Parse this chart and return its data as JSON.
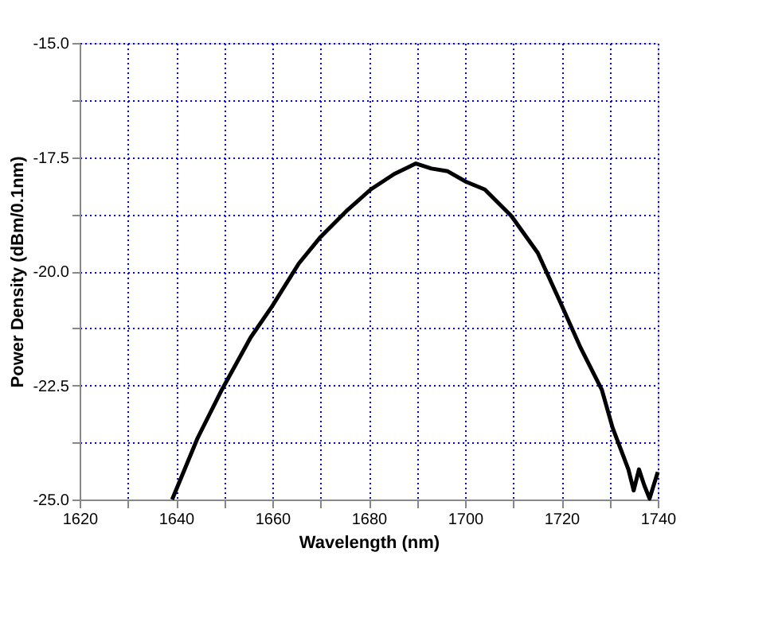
{
  "chart_data": {
    "type": "line",
    "xlabel": "Wavelength (nm)",
    "ylabel": "Power Density (dBm/0.1nm)",
    "x": [
      1639.2,
      1644.5,
      1649.5,
      1655.5,
      1660,
      1665.5,
      1670,
      1675.4,
      1680.4,
      1685.3,
      1689.8,
      1693,
      1696.4,
      1700.2,
      1704.1,
      1709.6,
      1715.1,
      1719.6,
      1724,
      1728.4,
      1730.6,
      1733.9,
      1735,
      1736.1,
      1737.2,
      1738.3,
      1740
    ],
    "series": [
      {
        "color": "#000000",
        "values": [
          -25,
          -23.65,
          -22.6,
          -21.45,
          -20.76,
          -19.83,
          -19.25,
          -18.68,
          -18.21,
          -17.87,
          -17.64,
          -17.75,
          -17.81,
          -18.04,
          -18.21,
          -18.79,
          -19.6,
          -20.64,
          -21.68,
          -22.6,
          -23.42,
          -24.34,
          -24.8,
          -24.34,
          -24.69,
          -24.98,
          -24.4
        ]
      }
    ],
    "xlim": [
      1620,
      1740
    ],
    "ylim": [
      -25,
      -15
    ],
    "xticks": [
      1620,
      {
        "value": 1630,
        "label": null
      },
      1640,
      {
        "value": 1650,
        "label": null
      },
      1660,
      {
        "value": 1670,
        "label": null
      },
      1680,
      {
        "value": 1690,
        "label": null
      },
      1700,
      {
        "value": 1710,
        "label": null
      },
      1720,
      {
        "value": 1730,
        "label": null
      },
      1740
    ],
    "yticks": [
      {
        "value": -25,
        "label": "-25.0"
      },
      {
        "value": -23.75,
        "label": null
      },
      {
        "value": -22.5,
        "label": "-22.5"
      },
      {
        "value": -21.25,
        "label": null
      },
      {
        "value": -20,
        "label": "-20.0"
      },
      {
        "value": -18.75,
        "label": null
      },
      {
        "value": -17.5,
        "label": "-17.5"
      },
      {
        "value": -16.25,
        "label": null
      },
      {
        "value": -15,
        "label": "-15.0"
      }
    ],
    "grid": true,
    "marker": "none",
    "line_style": "solid"
  }
}
